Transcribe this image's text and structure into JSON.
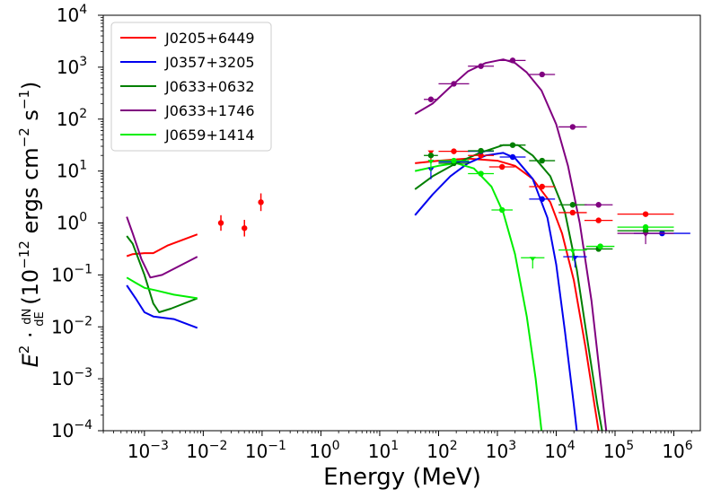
{
  "chart_data": {
    "type": "line",
    "title": "",
    "xlabel": "Energy (MeV)",
    "ylabel_parts": {
      "e": "E",
      "sq": "2",
      "dot": " · ",
      "dn": "dN",
      "de": "dE",
      "units_pre": " (10",
      "exp": "−12",
      "units_mid": " ergs cm",
      "exp2": "−2",
      "units_s": " s",
      "exp3": "−1",
      "close": ")"
    },
    "xscale": "log",
    "yscale": "log",
    "xlim_log10": [
      -3.7,
      6.45
    ],
    "ylim_log10": [
      -4,
      4
    ],
    "xtick_exponents": [
      "−3",
      "−2",
      "−1",
      "0",
      "1",
      "2",
      "3",
      "4",
      "5",
      "6"
    ],
    "ytick_exponents": [
      "−4",
      "−3",
      "−2",
      "−1",
      "0",
      "1",
      "2",
      "3",
      "4"
    ],
    "tick_base": "10",
    "legend_position": "upper-left",
    "series": [
      {
        "name": "J0205+6449",
        "color": "#ff0000",
        "radio_curve": [
          [
            -3.3,
            -0.64
          ],
          [
            -3.2,
            -0.6
          ],
          [
            -3.0,
            -0.58
          ],
          [
            -2.85,
            -0.58
          ],
          [
            -2.6,
            -0.43
          ],
          [
            -2.1,
            -0.22
          ]
        ],
        "model_curve": [
          [
            1.6,
            1.15
          ],
          [
            2.0,
            1.2
          ],
          [
            2.5,
            1.24
          ],
          [
            3.0,
            1.2
          ],
          [
            3.3,
            1.1
          ],
          [
            3.6,
            0.85
          ],
          [
            3.9,
            0.4
          ],
          [
            4.1,
            -0.2
          ],
          [
            4.3,
            -1.1
          ],
          [
            4.5,
            -2.4
          ],
          [
            4.65,
            -3.5
          ],
          [
            4.72,
            -4.0
          ]
        ],
        "points": [
          {
            "x": -1.7,
            "y": 0.0,
            "yerr": 0.15
          },
          {
            "x": -1.3,
            "y": -0.1,
            "yerr": 0.16
          },
          {
            "x": -1.02,
            "y": 0.4,
            "yerr": 0.17
          },
          {
            "x": 1.87,
            "y": 1.38,
            "ul": true
          },
          {
            "x": 2.26,
            "y": 1.38,
            "xerr": 0.26
          },
          {
            "x": 2.72,
            "y": 1.3,
            "xerr": 0.22
          },
          {
            "x": 3.08,
            "y": 1.08,
            "xerr": 0.22
          },
          {
            "x": 3.76,
            "y": 0.7,
            "xerr": 0.22
          },
          {
            "x": 4.28,
            "y": 0.2,
            "xerr": 0.24
          },
          {
            "x": 4.72,
            "y": 0.05,
            "xerr": 0.24
          },
          {
            "x": 5.52,
            "y": 0.17,
            "xerr": 0.48
          }
        ]
      },
      {
        "name": "J0357+3205",
        "color": "#0000ee",
        "radio_curve": [
          [
            -3.3,
            -1.2
          ],
          [
            -3.15,
            -1.45
          ],
          [
            -3.0,
            -1.72
          ],
          [
            -2.85,
            -1.8
          ],
          [
            -2.5,
            -1.85
          ],
          [
            -2.1,
            -2.02
          ]
        ],
        "model_curve": [
          [
            1.6,
            0.15
          ],
          [
            1.9,
            0.55
          ],
          [
            2.2,
            0.9
          ],
          [
            2.5,
            1.15
          ],
          [
            2.8,
            1.3
          ],
          [
            3.1,
            1.35
          ],
          [
            3.3,
            1.25
          ],
          [
            3.6,
            0.85
          ],
          [
            3.85,
            0.1
          ],
          [
            4.0,
            -0.8
          ],
          [
            4.15,
            -2.1
          ],
          [
            4.3,
            -3.5
          ],
          [
            4.35,
            -4.0
          ]
        ],
        "points": [
          {
            "x": 1.87,
            "y": 1.05,
            "ul": true
          },
          {
            "x": 2.26,
            "y": 1.18,
            "xerr": 0.26
          },
          {
            "x": 2.72,
            "y": 1.38,
            "xerr": 0.22
          },
          {
            "x": 3.26,
            "y": 1.27,
            "xerr": 0.22
          },
          {
            "x": 3.76,
            "y": 0.46,
            "xerr": 0.22
          },
          {
            "x": 4.32,
            "y": -0.65,
            "ul": true,
            "xerr": 0.2
          },
          {
            "x": 5.8,
            "y": -0.2,
            "xerr": 0.48
          }
        ]
      },
      {
        "name": "J0633+0632",
        "color": "#007f00",
        "radio_curve": [
          [
            -3.3,
            -0.25
          ],
          [
            -3.2,
            -0.4
          ],
          [
            -3.0,
            -1.0
          ],
          [
            -2.85,
            -1.55
          ],
          [
            -2.75,
            -1.72
          ],
          [
            -2.55,
            -1.65
          ],
          [
            -2.1,
            -1.45
          ]
        ],
        "model_curve": [
          [
            1.6,
            0.65
          ],
          [
            1.9,
            0.9
          ],
          [
            2.3,
            1.15
          ],
          [
            2.7,
            1.35
          ],
          [
            3.1,
            1.5
          ],
          [
            3.35,
            1.5
          ],
          [
            3.6,
            1.3
          ],
          [
            3.9,
            0.9
          ],
          [
            4.15,
            0.2
          ],
          [
            4.35,
            -0.9
          ],
          [
            4.55,
            -2.4
          ],
          [
            4.7,
            -3.5
          ],
          [
            4.78,
            -4.0
          ]
        ],
        "points": [
          {
            "x": 1.87,
            "y": 1.3,
            "xerr": 0.12
          },
          {
            "x": 2.26,
            "y": 1.15,
            "xerr": 0.26
          },
          {
            "x": 2.72,
            "y": 1.39,
            "xerr": 0.22
          },
          {
            "x": 3.26,
            "y": 1.5,
            "xerr": 0.22
          },
          {
            "x": 3.76,
            "y": 1.2,
            "xerr": 0.22
          },
          {
            "x": 4.28,
            "y": 0.35,
            "xerr": 0.24
          },
          {
            "x": 4.72,
            "y": -0.5,
            "xerr": 0.24
          },
          {
            "x": 5.52,
            "y": -0.15,
            "xerr": 0.48
          }
        ]
      },
      {
        "name": "J0633+1746",
        "color": "#800080",
        "radio_curve": [
          [
            -3.3,
            0.12
          ],
          [
            -3.2,
            -0.2
          ],
          [
            -3.05,
            -0.7
          ],
          [
            -2.9,
            -1.05
          ],
          [
            -2.7,
            -1.0
          ],
          [
            -2.1,
            -0.65
          ]
        ],
        "model_curve": [
          [
            1.6,
            2.1
          ],
          [
            1.9,
            2.3
          ],
          [
            2.2,
            2.62
          ],
          [
            2.5,
            2.92
          ],
          [
            2.8,
            3.08
          ],
          [
            3.1,
            3.15
          ],
          [
            3.3,
            3.08
          ],
          [
            3.5,
            2.9
          ],
          [
            3.75,
            2.55
          ],
          [
            4.0,
            1.9
          ],
          [
            4.2,
            1.1
          ],
          [
            4.4,
            0.0
          ],
          [
            4.6,
            -1.5
          ],
          [
            4.75,
            -3.0
          ],
          [
            4.85,
            -4.0
          ]
        ],
        "points": [
          {
            "x": 1.87,
            "y": 2.38,
            "xerr": 0.12
          },
          {
            "x": 2.26,
            "y": 2.68,
            "xerr": 0.26
          },
          {
            "x": 2.72,
            "y": 3.02,
            "xerr": 0.22
          },
          {
            "x": 3.26,
            "y": 3.13,
            "xerr": 0.22
          },
          {
            "x": 3.76,
            "y": 2.86,
            "xerr": 0.22
          },
          {
            "x": 4.28,
            "y": 1.85,
            "xerr": 0.24
          },
          {
            "x": 4.72,
            "y": 0.35,
            "xerr": 0.24
          },
          {
            "x": 5.52,
            "y": -0.2,
            "ul": true,
            "xerr": 0.48
          }
        ]
      },
      {
        "name": "J0659+1414",
        "color": "#00ee00",
        "radio_curve": [
          [
            -3.3,
            -1.05
          ],
          [
            -3.15,
            -1.15
          ],
          [
            -3.0,
            -1.25
          ],
          [
            -2.8,
            -1.3
          ],
          [
            -2.5,
            -1.38
          ],
          [
            -2.1,
            -1.45
          ]
        ],
        "model_curve": [
          [
            1.6,
            1.0
          ],
          [
            2.0,
            1.1
          ],
          [
            2.3,
            1.15
          ],
          [
            2.6,
            1.05
          ],
          [
            2.9,
            0.7
          ],
          [
            3.1,
            0.2
          ],
          [
            3.3,
            -0.6
          ],
          [
            3.5,
            -1.8
          ],
          [
            3.65,
            -3.0
          ],
          [
            3.75,
            -4.0
          ]
        ],
        "points": [
          {
            "x": 1.87,
            "y": 1.2,
            "ul": true
          },
          {
            "x": 2.26,
            "y": 1.2,
            "xerr": 0.26
          },
          {
            "x": 2.72,
            "y": 0.95,
            "xerr": 0.22
          },
          {
            "x": 3.08,
            "y": 0.25,
            "xerr": 0.18
          },
          {
            "x": 3.6,
            "y": -0.67,
            "ul": true,
            "xerr": 0.2
          },
          {
            "x": 4.28,
            "y": -0.52,
            "ul": true,
            "xerr": 0.24
          },
          {
            "x": 4.75,
            "y": -0.45,
            "xerr": 0.24
          },
          {
            "x": 5.52,
            "y": -0.08,
            "xerr": 0.48
          }
        ]
      }
    ]
  }
}
